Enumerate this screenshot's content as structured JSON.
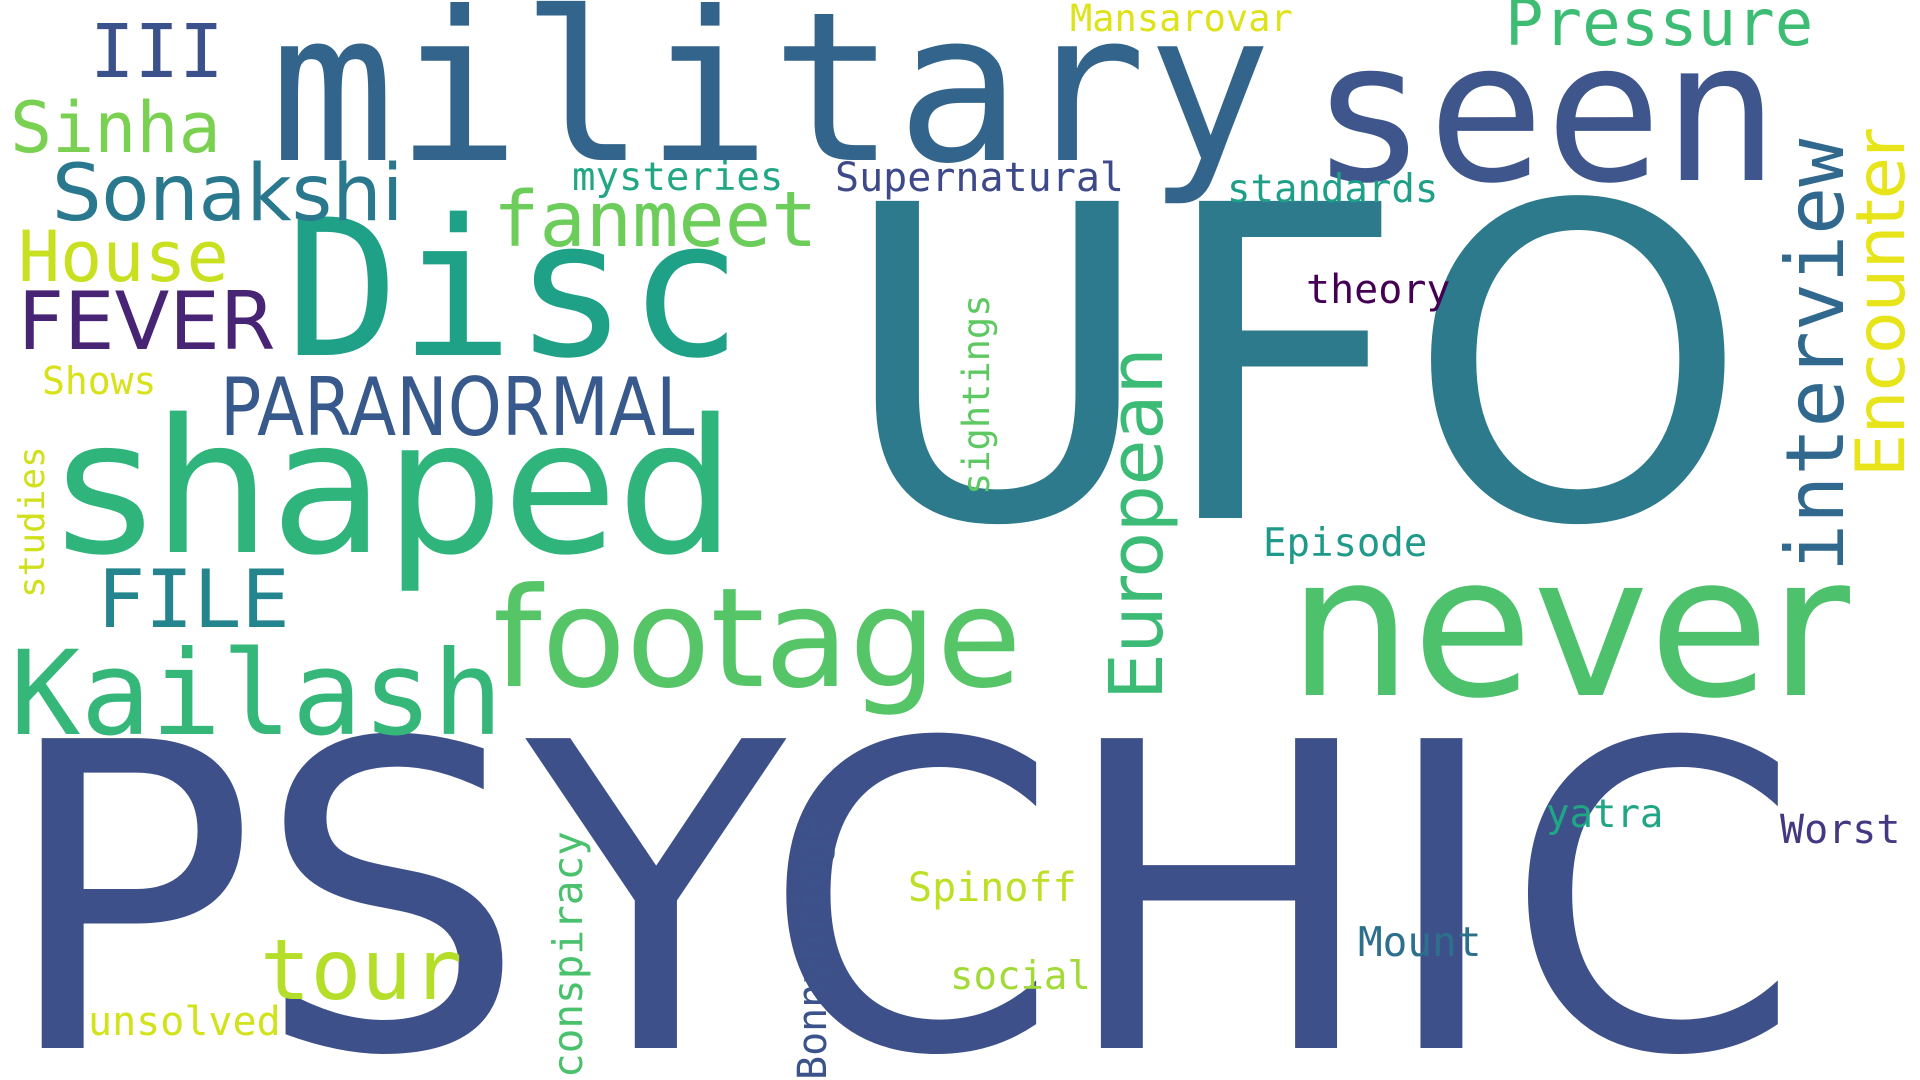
{
  "words": {
    "ufo": {
      "text": "UFO",
      "color": "#2c7a8c"
    },
    "psychic": {
      "text": "PSYCHIC",
      "color": "#3e508a"
    },
    "military": {
      "text": "military",
      "color": "#33658c"
    },
    "seen": {
      "text": "seen",
      "color": "#3f568c"
    },
    "never": {
      "text": "never",
      "color": "#4dc16c"
    },
    "shaped": {
      "text": "shaped",
      "color": "#2fb47c"
    },
    "disc": {
      "text": "Disc",
      "color": "#1fa187"
    },
    "footage": {
      "text": "footage",
      "color": "#55c568"
    },
    "kailash": {
      "text": "Kailash",
      "color": "#35b779"
    },
    "interview": {
      "text": "interview",
      "color": "#31688e"
    },
    "encounter": {
      "text": "Encounter",
      "color": "#e7e419"
    },
    "european": {
      "text": "European",
      "color": "#3bbb75"
    },
    "pressure": {
      "text": "Pressure",
      "color": "#3dbc74"
    },
    "sonakshi": {
      "text": "Sonakshi",
      "color": "#2a788e"
    },
    "fanmeet": {
      "text": "fanmeet",
      "color": "#6ccd5a"
    },
    "paranormal": {
      "text": "PARANORMAL",
      "color": "#38598c"
    },
    "fever": {
      "text": "FEVER",
      "color": "#482475"
    },
    "house": {
      "text": "House",
      "color": "#c8e020"
    },
    "sinha": {
      "text": "Sinha",
      "color": "#7ad151"
    },
    "iii": {
      "text": "III",
      "color": "#3b518b"
    },
    "file": {
      "text": "FILE",
      "color": "#25858e"
    },
    "tour": {
      "text": "tour",
      "color": "#b5de2b"
    },
    "mansarovar": {
      "text": "Mansarovar",
      "color": "#dde318"
    },
    "mysteries": {
      "text": "mysteries",
      "color": "#22a785"
    },
    "supernatural": {
      "text": "Supernatural",
      "color": "#3e4989"
    },
    "standards": {
      "text": "standards",
      "color": "#1f9f88"
    },
    "theory": {
      "text": "theory",
      "color": "#440154"
    },
    "sightings": {
      "text": "sightings",
      "color": "#5ec962"
    },
    "shows": {
      "text": "Shows",
      "color": "#d8e219"
    },
    "studies": {
      "text": "studies",
      "color": "#d0e11c"
    },
    "episode": {
      "text": "Episode",
      "color": "#1f9a8a"
    },
    "yatra": {
      "text": "yatra",
      "color": "#21a685"
    },
    "worst": {
      "text": "Worst",
      "color": "#453882"
    },
    "spinoff": {
      "text": "Spinoff",
      "color": "#bddf26"
    },
    "mount": {
      "text": "Mount",
      "color": "#2d708e"
    },
    "social": {
      "text": "social",
      "color": "#a2da37"
    },
    "conspiracy": {
      "text": "conspiracy",
      "color": "#4ac16d"
    },
    "bonnybridge": {
      "text": "Bonnybridge",
      "color": "#3b528b"
    },
    "unsolved": {
      "text": "unsolved",
      "color": "#d2e21b"
    }
  }
}
